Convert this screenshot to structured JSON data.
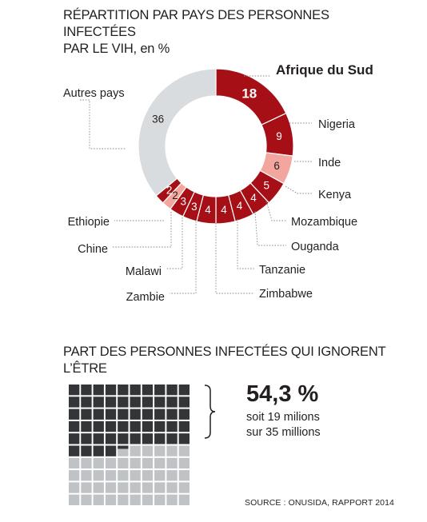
{
  "donut": {
    "title_line1": "RÉPARTITION PAR PAYS DES PERSONNES INFECTÉES",
    "title_line2": "PAR LE VIH, en %"
  },
  "chart_data": [
    {
      "type": "pie",
      "title": "RÉPARTITION PAR PAYS DES PERSONNES INFECTÉES PAR LE VIH, en %",
      "categories": [
        "Afrique du Sud",
        "Nigeria",
        "Inde",
        "Kenya",
        "Mozambique",
        "Ouganda",
        "Tanzanie",
        "Zimbabwe",
        "Zambie",
        "Malawi",
        "Chine",
        "Ethiopie",
        "Autres pays"
      ],
      "values": [
        18,
        9,
        6,
        5,
        4,
        4,
        4,
        4,
        3,
        3,
        2,
        2,
        36
      ],
      "colors": [
        "#a50f15",
        "#a50f15",
        "#f2a69d",
        "#a50f15",
        "#a50f15",
        "#a50f15",
        "#a50f15",
        "#a50f15",
        "#a50f15",
        "#a50f15",
        "#f2a69d",
        "#a50f15",
        "#d9dcde"
      ],
      "highlight": "Afrique du Sud"
    },
    {
      "type": "waffle",
      "title": "PART DES PERSONNES INFECTÉES QUI IGNORENT L'ÊTRE",
      "value_percent": 54.3,
      "grid": [
        10,
        10
      ],
      "colors": {
        "unaware": "#333538",
        "aware": "#bfc3c6"
      }
    }
  ],
  "waffle": {
    "title": "PART DES PERSONNES INFECTÉES QUI IGNORENT L’ÊTRE",
    "big_value": "54,3 %",
    "sub_line1": "soit 19 milions",
    "sub_line2": "sur 35 millions"
  },
  "source": "SOURCE : ONUSIDA, RAPPORT 2014",
  "colors": {
    "dark_red": "#a50f15",
    "pink": "#f2a69d",
    "light_gray": "#d9dcde",
    "dark_square": "#333538",
    "light_square": "#bfc3c6"
  }
}
